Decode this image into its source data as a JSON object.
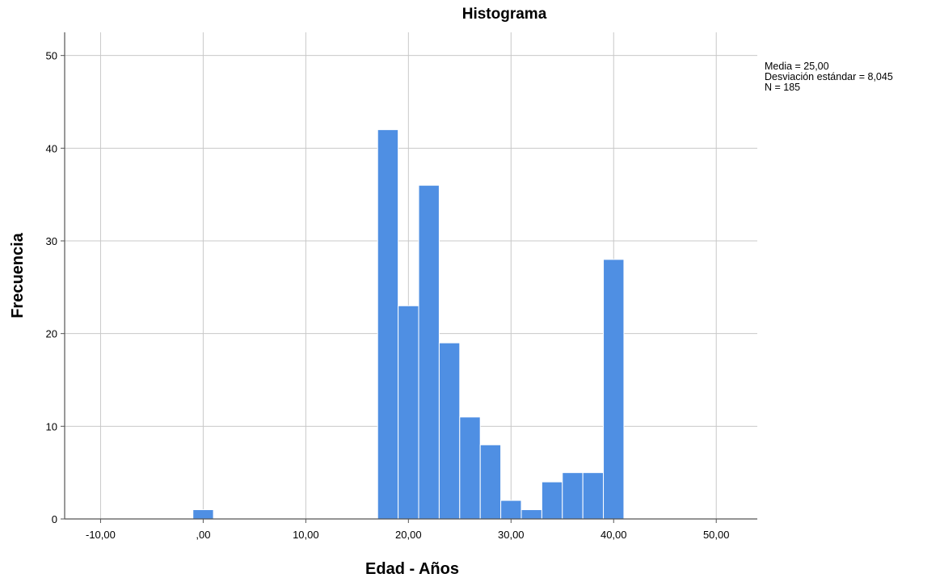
{
  "chart_data": {
    "type": "bar",
    "title": "Histograma",
    "xlabel": "Edad - Años",
    "ylabel": "Frecuencia",
    "xlim": [
      -13.5,
      54.0
    ],
    "ylim": [
      0,
      52.5
    ],
    "x_ticks": [
      -10,
      0,
      10,
      20,
      30,
      40,
      50
    ],
    "x_tick_labels": [
      "-10,00",
      ",00",
      "10,00",
      "20,00",
      "30,00",
      "40,00",
      "50,00"
    ],
    "y_ticks": [
      0,
      10,
      20,
      30,
      40,
      50
    ],
    "y_tick_labels": [
      "0",
      "10",
      "20",
      "30",
      "40",
      "50"
    ],
    "grid": true,
    "bar_color": "#4f8fe3",
    "bins": [
      {
        "start": -1,
        "end": 1,
        "value": 1
      },
      {
        "start": 17,
        "end": 19,
        "value": 42
      },
      {
        "start": 19,
        "end": 21,
        "value": 23
      },
      {
        "start": 21,
        "end": 23,
        "value": 36
      },
      {
        "start": 23,
        "end": 25,
        "value": 19
      },
      {
        "start": 25,
        "end": 27,
        "value": 11
      },
      {
        "start": 27,
        "end": 29,
        "value": 8
      },
      {
        "start": 29,
        "end": 31,
        "value": 2
      },
      {
        "start": 31,
        "end": 33,
        "value": 1
      },
      {
        "start": 33,
        "end": 35,
        "value": 4
      },
      {
        "start": 35,
        "end": 37,
        "value": 5
      },
      {
        "start": 37,
        "end": 39,
        "value": 5
      },
      {
        "start": 39,
        "end": 41,
        "value": 28
      }
    ],
    "stats": {
      "mean": "Media = 25,00",
      "sd": "Desviación estándar = 8,045",
      "n": "N = 185"
    }
  }
}
